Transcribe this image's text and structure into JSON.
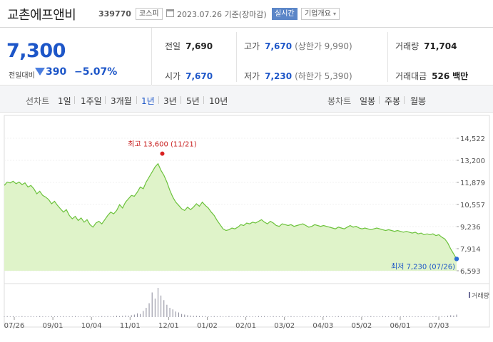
{
  "header": {
    "company_name": "교촌에프앤비",
    "code": "339770",
    "market_badge": "코스피",
    "date_text": "2023.07.26 기준(장마감)",
    "realtime_badge": "실시간",
    "company_info_button": "기업개요",
    "company_info_arrow": "▾"
  },
  "price": {
    "current": "7,300",
    "change_label": "전일대비",
    "change": "390",
    "change_pct": "−5.07%",
    "direction": "down",
    "down_color": "#1d56c8"
  },
  "summary": {
    "prev_close_label": "전일",
    "prev_close": "7,690",
    "high_label": "고가",
    "high": "7,670",
    "upper_limit": "(상한가 9,990)",
    "volume_label": "거래량",
    "volume": "71,704",
    "open_label": "시가",
    "open": "7,670",
    "low_label": "저가",
    "low": "7,230",
    "lower_limit": "(하한가 5,390)",
    "trade_value_label": "거래대금",
    "trade_value": "526",
    "trade_value_unit": "백만"
  },
  "periods": {
    "line_label": "선차트",
    "line_options": [
      "1일",
      "1주일",
      "3개월",
      "1년",
      "3년",
      "5년",
      "10년"
    ],
    "selected": "1년",
    "candle_label": "봉차트",
    "candle_options": [
      "일봉",
      "주봉",
      "월봉"
    ]
  },
  "chart_data": {
    "type": "area",
    "title": "",
    "y_ticks": [
      "14,522",
      "13,200",
      "11,879",
      "10,557",
      "9,236",
      "7,914",
      "6,593"
    ],
    "ylim": [
      6593,
      14522
    ],
    "x_ticks": [
      "07/26",
      "09/01",
      "10/04",
      "11/01",
      "12/01",
      "01/02",
      "02/01",
      "03/02",
      "04/03",
      "05/02",
      "06/01",
      "07/03"
    ],
    "high_annotation": "최고 13,600 (11/21)",
    "low_annotation": "최저 7,230 (07/26)",
    "volume_legend": "거래량",
    "line_color": "#6cc23c",
    "fill_color": "#dff3c9",
    "marker_high_color": "#d92121",
    "marker_low_color": "#2b6fd6",
    "series": [
      {
        "values": [
          11700,
          11900,
          11850,
          11950,
          11800,
          11900,
          11750,
          11850,
          11600,
          11700,
          11500,
          11200,
          11350,
          11100,
          11000,
          10850,
          10600,
          10750,
          10500,
          10300,
          10100,
          10250,
          9900,
          9700,
          9850,
          9600,
          9750,
          9500,
          9650,
          9350,
          9200,
          9450,
          9550,
          9400,
          9650,
          9900,
          10100,
          10000,
          10200,
          10550,
          10350,
          10700,
          10900,
          11100,
          11050,
          11300,
          11600,
          11500,
          11900,
          12200,
          12500,
          12800,
          13000,
          12600,
          12300,
          11900,
          11400,
          11000,
          10700,
          10500,
          10300,
          10200,
          10400,
          10250,
          10400,
          10600,
          10450,
          10700,
          10500,
          10350,
          10100,
          9900,
          9600,
          9350,
          9100,
          9000,
          9050,
          9150,
          9100,
          9200,
          9350,
          9300,
          9450,
          9400,
          9500,
          9450,
          9550,
          9650,
          9500,
          9400,
          9550,
          9450,
          9300,
          9250,
          9400,
          9350,
          9300,
          9350,
          9250,
          9300,
          9350,
          9400,
          9300,
          9200,
          9250,
          9350,
          9300,
          9250,
          9300,
          9250,
          9200,
          9150,
          9100,
          9200,
          9150,
          9100,
          9200,
          9300,
          9200,
          9250,
          9150,
          9100,
          9150,
          9100,
          9050,
          9100,
          9150,
          9100,
          9050,
          9000,
          9050,
          9000,
          8950,
          9000,
          8950,
          8900,
          8950,
          8900,
          8850,
          8900,
          8800,
          8850,
          8750,
          8800,
          8750,
          8800,
          8700,
          8750,
          8600,
          8500,
          8250,
          7900,
          7600,
          7300
        ]
      },
      {
        "name": "거래량",
        "values": [
          2,
          3,
          2,
          3,
          2,
          2,
          3,
          2,
          2,
          3,
          2,
          2,
          3,
          2,
          2,
          2,
          3,
          2,
          2,
          2,
          3,
          2,
          2,
          2,
          3,
          2,
          2,
          2,
          3,
          2,
          2,
          2,
          2,
          3,
          2,
          3,
          2,
          3,
          4,
          3,
          4,
          5,
          4,
          6,
          8,
          12,
          10,
          20,
          30,
          45,
          80,
          60,
          95,
          70,
          55,
          40,
          30,
          25,
          18,
          15,
          10,
          8,
          6,
          5,
          4,
          4,
          3,
          3,
          3,
          2,
          2,
          3,
          2,
          3,
          2,
          2,
          3,
          2,
          2,
          3,
          2,
          2,
          3,
          2,
          2,
          2,
          3,
          2,
          3,
          2,
          2,
          3,
          2,
          2,
          3,
          2,
          2,
          3,
          2,
          2,
          2,
          3,
          2,
          2,
          2,
          3,
          2,
          2,
          2,
          3,
          2,
          2,
          2,
          3,
          2,
          2,
          2,
          3,
          2,
          2,
          2,
          3,
          2,
          2,
          3,
          2,
          2,
          2,
          3,
          2,
          2,
          2,
          2,
          3,
          2,
          2,
          2,
          3,
          2,
          2,
          2,
          2,
          3,
          2,
          2,
          2,
          3,
          2,
          3,
          2,
          4,
          6,
          5,
          8
        ]
      }
    ]
  }
}
